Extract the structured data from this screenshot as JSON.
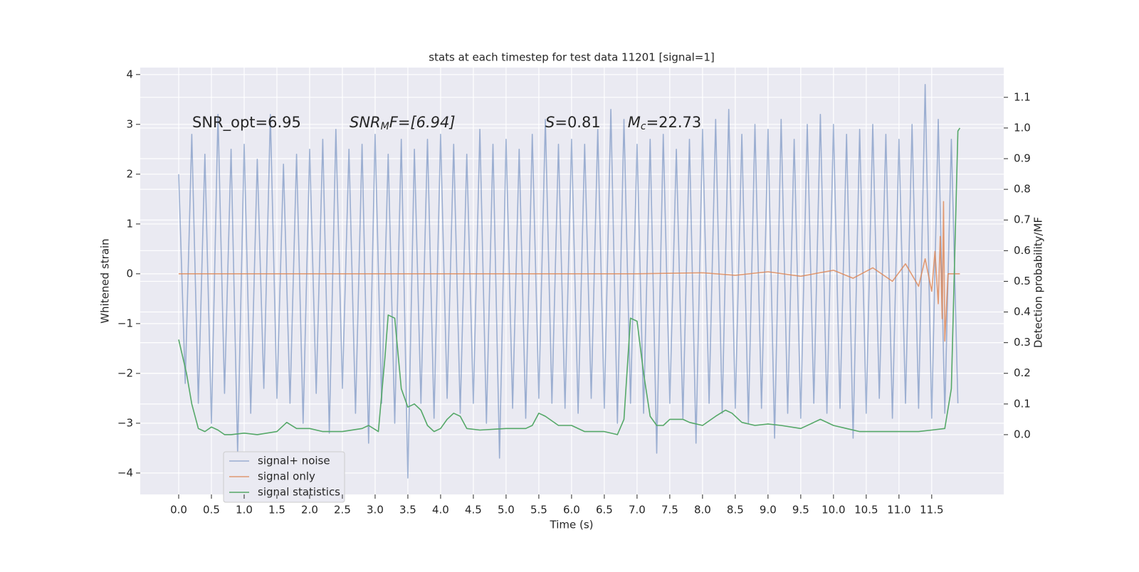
{
  "chart_data": {
    "type": "line",
    "title": "stats at each timestep for test data 11201 [signal=1]",
    "x_label": "Time (s)",
    "y_label": "Whitened strain",
    "y2_label": "Detection probability/MF",
    "annotations": [
      [
        "SNR_opt=6.95"
      ],
      [
        "SNR",
        "M",
        "F=[6.94]"
      ],
      [
        "S",
        "=0.81   ",
        "M",
        "c",
        "=22.73"
      ]
    ],
    "xlim": [
      -0.587,
      12.6
    ],
    "ylim": [
      -4.43,
      4.14
    ],
    "y2lim": [
      -0.195,
      1.197
    ],
    "xticks": [
      {
        "value": 0,
        "label": "0.0"
      },
      0.5,
      {
        "value": 1,
        "label": "1.0"
      },
      1.5,
      {
        "value": 2,
        "label": "2.0"
      },
      2.5,
      {
        "value": 3,
        "label": "3.0"
      },
      3.5,
      {
        "value": 4,
        "label": "4.0"
      },
      4.5,
      {
        "value": 5,
        "label": "5.0"
      },
      5.5,
      {
        "value": 6,
        "label": "6.0"
      },
      6.5,
      {
        "value": 7,
        "label": "7.0"
      },
      7.5,
      {
        "value": 8,
        "label": "8.0"
      },
      8.5,
      {
        "value": 9,
        "label": "9.0"
      },
      9.5,
      {
        "value": 10,
        "label": "10.0"
      },
      10.5,
      {
        "value": 11,
        "label": "11.0"
      },
      11.5
    ],
    "yticks": [
      {
        "value": -4,
        "label": "−4"
      },
      {
        "value": -3,
        "label": "−3"
      },
      {
        "value": -2,
        "label": "−2"
      },
      {
        "value": -1,
        "label": "−1"
      },
      0,
      1,
      2,
      3,
      4
    ],
    "y2ticks": [
      {
        "value": 0,
        "label": "0.0"
      },
      0.1,
      0.2,
      0.3,
      0.4,
      0.5,
      0.6,
      0.7,
      0.8,
      0.9,
      {
        "value": 1,
        "label": "1.0"
      },
      1.1
    ],
    "grid": true,
    "legend": "lower left",
    "series": [
      {
        "name": "signal+ noise",
        "color": "#4c72b0",
        "opacity": 0.5,
        "x": [
          0.0,
          0.1,
          0.2,
          0.3,
          0.4,
          0.5,
          0.6,
          0.7,
          0.8,
          0.9,
          1.0,
          1.1,
          1.2,
          1.3,
          1.4,
          1.5,
          1.6,
          1.7,
          1.8,
          1.9,
          2.0,
          2.1,
          2.2,
          2.3,
          2.4,
          2.5,
          2.6,
          2.7,
          2.8,
          2.9,
          3.0,
          3.1,
          3.2,
          3.3,
          3.4,
          3.5,
          3.6,
          3.7,
          3.8,
          3.9,
          4.0,
          4.1,
          4.2,
          4.3,
          4.4,
          4.5,
          4.6,
          4.7,
          4.8,
          4.9,
          5.0,
          5.1,
          5.2,
          5.3,
          5.4,
          5.5,
          5.6,
          5.7,
          5.8,
          5.9,
          6.0,
          6.1,
          6.2,
          6.3,
          6.4,
          6.5,
          6.6,
          6.7,
          6.8,
          6.9,
          7.0,
          7.1,
          7.2,
          7.3,
          7.4,
          7.5,
          7.6,
          7.7,
          7.8,
          7.9,
          8.0,
          8.1,
          8.2,
          8.3,
          8.4,
          8.5,
          8.6,
          8.7,
          8.8,
          8.9,
          9.0,
          9.1,
          9.2,
          9.3,
          9.4,
          9.5,
          9.6,
          9.7,
          9.8,
          9.9,
          10.0,
          10.1,
          10.2,
          10.3,
          10.4,
          10.5,
          10.6,
          10.7,
          10.8,
          10.9,
          11.0,
          11.1,
          11.2,
          11.3,
          11.4,
          11.5,
          11.6,
          11.7,
          11.8,
          11.9
        ],
        "values": [
          2.0,
          -2.2,
          2.8,
          -2.6,
          2.4,
          -3.0,
          3.2,
          -2.4,
          2.5,
          -3.6,
          2.6,
          -2.8,
          2.3,
          -2.3,
          3.2,
          -2.5,
          2.2,
          -2.6,
          2.4,
          -3.0,
          2.5,
          -2.4,
          2.7,
          -3.2,
          2.9,
          -2.3,
          2.5,
          -2.8,
          2.6,
          -3.4,
          2.8,
          -2.6,
          2.4,
          -3.0,
          2.7,
          -4.1,
          2.5,
          -2.6,
          2.7,
          -2.9,
          2.8,
          -2.5,
          2.6,
          -2.8,
          2.4,
          -2.6,
          2.9,
          -3.0,
          2.6,
          -3.7,
          2.7,
          -2.7,
          2.5,
          -2.9,
          2.8,
          -2.5,
          3.1,
          -2.6,
          2.6,
          -2.7,
          2.7,
          -2.8,
          2.6,
          -2.5,
          2.9,
          -2.7,
          3.3,
          -3.0,
          3.1,
          -2.6,
          2.6,
          -2.8,
          2.7,
          -3.6,
          2.8,
          -2.6,
          2.5,
          -2.9,
          2.7,
          -3.4,
          2.9,
          -2.6,
          3.1,
          -2.8,
          3.3,
          -2.7,
          2.8,
          -3.0,
          3.0,
          -2.7,
          2.9,
          -3.3,
          3.1,
          -2.8,
          2.7,
          -2.9,
          3.0,
          -2.6,
          3.2,
          -2.8,
          3.0,
          -2.7,
          2.8,
          -3.3,
          2.9,
          -2.8,
          3.0,
          -2.5,
          2.8,
          -2.9,
          2.7,
          -2.6,
          3.0,
          -2.7,
          3.8,
          -2.9,
          3.1,
          -2.8,
          2.7,
          -2.6
        ]
      },
      {
        "name": "signal only",
        "color": "#dd8452",
        "opacity": 0.8,
        "x": [
          0.0,
          7.0,
          8.0,
          8.5,
          9.0,
          9.5,
          10.0,
          10.3,
          10.6,
          10.9,
          11.1,
          11.3,
          11.4,
          11.5,
          11.55,
          11.6,
          11.63,
          11.66,
          11.68,
          11.7,
          11.75,
          11.8,
          11.9,
          11.93
        ],
        "values": [
          0.0,
          0.0,
          0.02,
          -0.03,
          0.04,
          -0.05,
          0.07,
          -0.09,
          0.12,
          -0.15,
          0.2,
          -0.25,
          0.3,
          -0.35,
          0.45,
          -0.6,
          0.75,
          -0.9,
          1.45,
          -1.35,
          0.0,
          0.0,
          0.0,
          0.0
        ]
      },
      {
        "name": "signal statistics",
        "color": "#55a868",
        "opacity": 1,
        "axis": "y2",
        "x": [
          0.0,
          0.12,
          0.2,
          0.3,
          0.4,
          0.5,
          0.6,
          0.7,
          0.8,
          1.0,
          1.2,
          1.5,
          1.65,
          1.8,
          2.0,
          2.2,
          2.5,
          2.8,
          2.9,
          3.05,
          3.15,
          3.2,
          3.3,
          3.4,
          3.5,
          3.6,
          3.7,
          3.8,
          3.9,
          4.0,
          4.1,
          4.2,
          4.3,
          4.4,
          4.6,
          5.0,
          5.3,
          5.4,
          5.5,
          5.6,
          5.8,
          6.0,
          6.2,
          6.5,
          6.7,
          6.8,
          6.9,
          7.0,
          7.1,
          7.2,
          7.3,
          7.4,
          7.5,
          7.7,
          7.8,
          8.0,
          8.2,
          8.35,
          8.45,
          8.6,
          8.8,
          9.0,
          9.2,
          9.5,
          9.8,
          10.0,
          10.2,
          10.4,
          10.7,
          11.0,
          11.3,
          11.5,
          11.7,
          11.8,
          11.9,
          11.93
        ],
        "values": [
          0.31,
          0.2,
          0.1,
          0.02,
          0.01,
          0.025,
          0.015,
          0.0,
          0.0,
          0.005,
          0.0,
          0.01,
          0.04,
          0.02,
          0.02,
          0.01,
          0.01,
          0.02,
          0.03,
          0.01,
          0.25,
          0.39,
          0.38,
          0.15,
          0.09,
          0.1,
          0.08,
          0.03,
          0.01,
          0.02,
          0.05,
          0.07,
          0.06,
          0.02,
          0.015,
          0.02,
          0.02,
          0.03,
          0.07,
          0.06,
          0.03,
          0.03,
          0.01,
          0.01,
          0.0,
          0.05,
          0.38,
          0.37,
          0.2,
          0.06,
          0.03,
          0.03,
          0.05,
          0.05,
          0.04,
          0.03,
          0.06,
          0.08,
          0.07,
          0.04,
          0.03,
          0.035,
          0.03,
          0.02,
          0.05,
          0.03,
          0.02,
          0.01,
          0.01,
          0.01,
          0.01,
          0.015,
          0.02,
          0.15,
          0.99,
          1.0
        ]
      }
    ]
  }
}
